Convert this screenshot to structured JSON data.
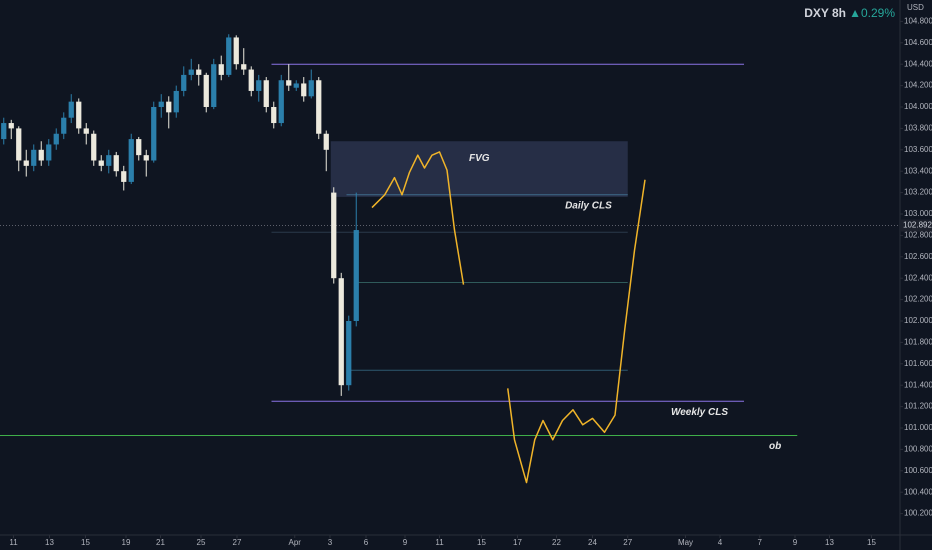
{
  "chart_data": {
    "type": "candlestick",
    "symbol": "DXY 8h",
    "change": "▲0.29%",
    "currency": "USD",
    "last_price": {
      "value": 102.892,
      "label": "102.892"
    },
    "up_color": "#2b7fab",
    "down_color": "#ece9dd",
    "open": [
      103.7,
      103.85,
      103.8,
      103.5,
      103.45,
      103.6,
      103.5,
      103.65,
      103.75,
      103.9,
      104.05,
      103.8,
      103.75,
      103.5,
      103.45,
      103.55,
      103.4,
      103.3,
      103.7,
      103.55,
      103.5,
      104.0,
      104.05,
      103.95,
      104.15,
      104.3,
      104.35,
      104.3,
      104.0,
      104.4,
      104.3,
      104.65,
      104.4,
      104.35,
      104.15,
      104.25,
      104.0,
      103.85,
      104.25,
      104.18,
      104.22,
      104.1,
      104.25,
      103.75,
      103.2,
      102.4,
      101.4,
      102.0
    ],
    "high": [
      103.9,
      103.88,
      103.82,
      103.6,
      103.65,
      103.68,
      103.7,
      103.8,
      103.95,
      104.12,
      104.08,
      103.85,
      103.78,
      103.55,
      103.6,
      103.58,
      103.45,
      103.75,
      103.72,
      103.6,
      104.05,
      104.12,
      104.1,
      104.2,
      104.38,
      104.45,
      104.4,
      104.32,
      104.45,
      104.48,
      104.68,
      104.67,
      104.55,
      104.38,
      104.3,
      104.28,
      104.05,
      104.3,
      104.4,
      104.25,
      104.28,
      104.35,
      104.28,
      103.78,
      103.25,
      102.45,
      102.05,
      103.2
    ],
    "low": [
      103.65,
      103.7,
      103.4,
      103.35,
      103.4,
      103.45,
      103.45,
      103.6,
      103.7,
      103.85,
      103.75,
      103.65,
      103.45,
      103.4,
      103.38,
      103.35,
      103.22,
      103.28,
      103.5,
      103.35,
      103.48,
      103.9,
      103.8,
      103.9,
      104.1,
      104.25,
      104.2,
      103.95,
      103.98,
      104.25,
      104.28,
      104.35,
      104.3,
      104.1,
      104.05,
      103.95,
      103.8,
      103.82,
      104.15,
      104.15,
      104.05,
      104.08,
      103.7,
      103.4,
      102.35,
      101.3,
      101.35,
      101.95
    ],
    "close": [
      103.85,
      103.8,
      103.5,
      103.45,
      103.6,
      103.5,
      103.65,
      103.75,
      103.9,
      104.05,
      103.8,
      103.75,
      103.5,
      103.45,
      103.55,
      103.4,
      103.3,
      103.7,
      103.55,
      103.5,
      104.0,
      104.05,
      103.95,
      104.15,
      104.3,
      104.35,
      104.3,
      104.0,
      104.4,
      104.3,
      104.65,
      104.4,
      104.35,
      104.15,
      104.25,
      104.0,
      103.85,
      104.25,
      104.2,
      104.22,
      104.1,
      104.25,
      103.75,
      103.6,
      102.4,
      101.4,
      102.0,
      102.85
    ],
    "xlim": [
      -0.5,
      119.5
    ],
    "xticks": [
      {
        "value": 1.3,
        "label": "11"
      },
      {
        "value": 6.1,
        "label": "13"
      },
      {
        "value": 10.9,
        "label": "15"
      },
      {
        "value": 16.3,
        "label": "19"
      },
      {
        "value": 20.9,
        "label": "21"
      },
      {
        "value": 26.3,
        "label": "25"
      },
      {
        "value": 31.1,
        "label": "27"
      },
      {
        "value": 38.8,
        "label": "Apr"
      },
      {
        "value": 43.5,
        "label": "3"
      },
      {
        "value": 48.3,
        "label": "6"
      },
      {
        "value": 53.5,
        "label": "9"
      },
      {
        "value": 58.1,
        "label": "11"
      },
      {
        "value": 63.7,
        "label": "15"
      },
      {
        "value": 68.5,
        "label": "17"
      },
      {
        "value": 73.7,
        "label": "22"
      },
      {
        "value": 78.5,
        "label": "24"
      },
      {
        "value": 83.2,
        "label": "27"
      },
      {
        "value": 90.9,
        "label": "May"
      },
      {
        "value": 95.5,
        "label": "4"
      },
      {
        "value": 100.8,
        "label": "7"
      },
      {
        "value": 105.5,
        "label": "9"
      },
      {
        "value": 110.1,
        "label": "13"
      },
      {
        "value": 115.7,
        "label": "15"
      }
    ],
    "ylim": [
      100.0,
      105.0
    ],
    "yticks": [
      {
        "value": 100.2,
        "label": "100.200"
      },
      {
        "value": 100.4,
        "label": "100.400"
      },
      {
        "value": 100.6,
        "label": "100.600"
      },
      {
        "value": 100.8,
        "label": "100.800"
      },
      {
        "value": 101.0,
        "label": "101.000"
      },
      {
        "value": 101.2,
        "label": "101.200"
      },
      {
        "value": 101.4,
        "label": "101.400"
      },
      {
        "value": 101.6,
        "label": "101.600"
      },
      {
        "value": 101.8,
        "label": "101.800"
      },
      {
        "value": 102.0,
        "label": "102.000"
      },
      {
        "value": 102.2,
        "label": "102.200"
      },
      {
        "value": 102.4,
        "label": "102.400"
      },
      {
        "value": 102.6,
        "label": "102.600"
      },
      {
        "value": 102.8,
        "label": "102.800"
      },
      {
        "value": 103.0,
        "label": "103.000"
      },
      {
        "value": 103.2,
        "label": "103.200"
      },
      {
        "value": 103.4,
        "label": "103.400"
      },
      {
        "value": 103.6,
        "label": "103.600"
      },
      {
        "value": 103.8,
        "label": "103.800"
      },
      {
        "value": 104.0,
        "label": "104.000"
      },
      {
        "value": 104.2,
        "label": "104.200"
      },
      {
        "value": 104.4,
        "label": "104.400"
      },
      {
        "value": 104.6,
        "label": "104.600"
      },
      {
        "value": 104.8,
        "label": "104.800"
      }
    ],
    "zone": {
      "label": "FVG",
      "x": [
        43.6,
        83.2
      ],
      "y": [
        103.16,
        103.68
      ],
      "color": "#3a4466"
    },
    "levels": [
      {
        "price": 104.4,
        "x": [
          35.7,
          98.7
        ],
        "color": "#8a73e6"
      },
      {
        "price": 101.25,
        "x": [
          35.7,
          98.7
        ],
        "color": "#8a73e6",
        "label": "Weekly CLS"
      },
      {
        "price": 100.93,
        "x": [
          -0.5,
          105.8
        ],
        "color": "#3fae49",
        "label": "ob"
      },
      {
        "price": 103.18,
        "x": [
          45.7,
          83.2
        ],
        "color": "#3f6a8a",
        "label": "Daily CLS"
      },
      {
        "price": 102.83,
        "x": [
          35.7,
          83.2
        ],
        "color": "#2a3a4a"
      },
      {
        "price": 102.36,
        "x": [
          47.2,
          83.2
        ],
        "color": "#2f5a5a"
      },
      {
        "price": 101.54,
        "x": [
          45.7,
          83.2
        ],
        "color": "#2f5a70"
      }
    ],
    "drawings": [
      {
        "color": "#f0b429",
        "x": [
          49.1,
          50.8,
          52.1,
          53.1,
          54.1,
          55.2,
          56.1,
          57.1,
          58.1,
          59.1,
          60.1,
          61.3
        ],
        "y": [
          103.06,
          103.18,
          103.34,
          103.18,
          103.39,
          103.55,
          103.43,
          103.55,
          103.58,
          103.41,
          102.85,
          102.34
        ]
      },
      {
        "color": "#f0b429",
        "x": [
          67.2,
          68.1,
          69.7,
          70.8,
          71.9,
          73.2,
          74.5,
          75.9,
          77.2,
          78.5,
          80.1,
          81.5,
          82.8,
          84.1,
          85.5
        ],
        "y": [
          101.37,
          100.89,
          100.49,
          100.89,
          101.07,
          100.89,
          101.07,
          101.17,
          101.03,
          101.09,
          100.96,
          101.12,
          101.92,
          102.66,
          103.32
        ]
      }
    ]
  }
}
